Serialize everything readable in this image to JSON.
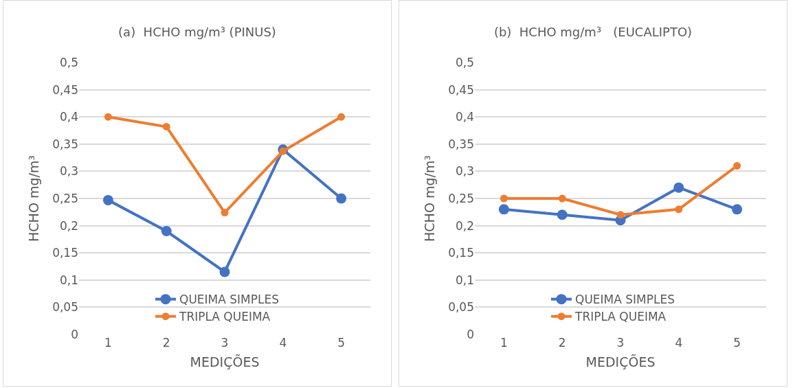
{
  "chart_data": [
    {
      "type": "line",
      "title": "(a)  HCHO mg/m³ (PINUS)",
      "xlabel": "MEDIÇÕES",
      "ylabel": "HCHO mg/m³",
      "categories": [
        "1",
        "2",
        "3",
        "4",
        "5"
      ],
      "series": [
        {
          "name": "QUEIMA SIMPLES",
          "color": "#4472c4",
          "values": [
            0.247,
            0.19,
            0.115,
            0.34,
            0.25
          ]
        },
        {
          "name": "TRIPLA QUEIMA",
          "color": "#ed7d31",
          "values": [
            0.4,
            0.382,
            0.224,
            0.337,
            0.4
          ]
        }
      ],
      "ylim": [
        0,
        0.5
      ],
      "yticks": [
        0,
        {
          "value": 0.05,
          "label": "0,05"
        },
        {
          "value": 0.1,
          "label": "0,1"
        },
        {
          "value": 0.15,
          "label": "0,15"
        },
        {
          "value": 0.2,
          "label": "0,2"
        },
        {
          "value": 0.25,
          "label": "0,25"
        },
        {
          "value": 0.3,
          "label": "0,3"
        },
        {
          "value": 0.35,
          "label": "0,35"
        },
        {
          "value": 0.4,
          "label": "0,4"
        },
        {
          "value": 0.45,
          "label": "0,45"
        },
        {
          "value": 0.5,
          "label": "0,5"
        }
      ],
      "grid": "y",
      "legend": "bottom",
      "marker": "circle",
      "line_style": "solid"
    },
    {
      "type": "line",
      "title": "(b)  HCHO mg/m³   (EUCALIPTO)",
      "xlabel": "MEDIÇÕES",
      "ylabel": "HCHO mg/m³",
      "categories": [
        "1",
        "2",
        "3",
        "4",
        "5"
      ],
      "series": [
        {
          "name": "QUEIMA SIMPLES",
          "color": "#4472c4",
          "values": [
            0.23,
            0.22,
            0.21,
            0.27,
            0.23
          ]
        },
        {
          "name": "TRIPLA QUEIMA",
          "color": "#ed7d31",
          "values": [
            0.25,
            0.25,
            0.22,
            0.23,
            0.31
          ]
        }
      ],
      "ylim": [
        0,
        0.5
      ],
      "yticks": [
        0,
        {
          "value": 0.05,
          "label": "0,05"
        },
        {
          "value": 0.1,
          "label": "0,1"
        },
        {
          "value": 0.15,
          "label": "0,15"
        },
        {
          "value": 0.2,
          "label": "0,2"
        },
        {
          "value": 0.25,
          "label": "0,25"
        },
        {
          "value": 0.3,
          "label": "0,3"
        },
        {
          "value": 0.35,
          "label": "0,35"
        },
        {
          "value": 0.4,
          "label": "0,4"
        },
        {
          "value": 0.45,
          "label": "0,45"
        },
        {
          "value": 0.5,
          "label": "0,5"
        }
      ],
      "grid": "y",
      "legend": "bottom",
      "marker": "circle",
      "line_style": "solid"
    }
  ]
}
